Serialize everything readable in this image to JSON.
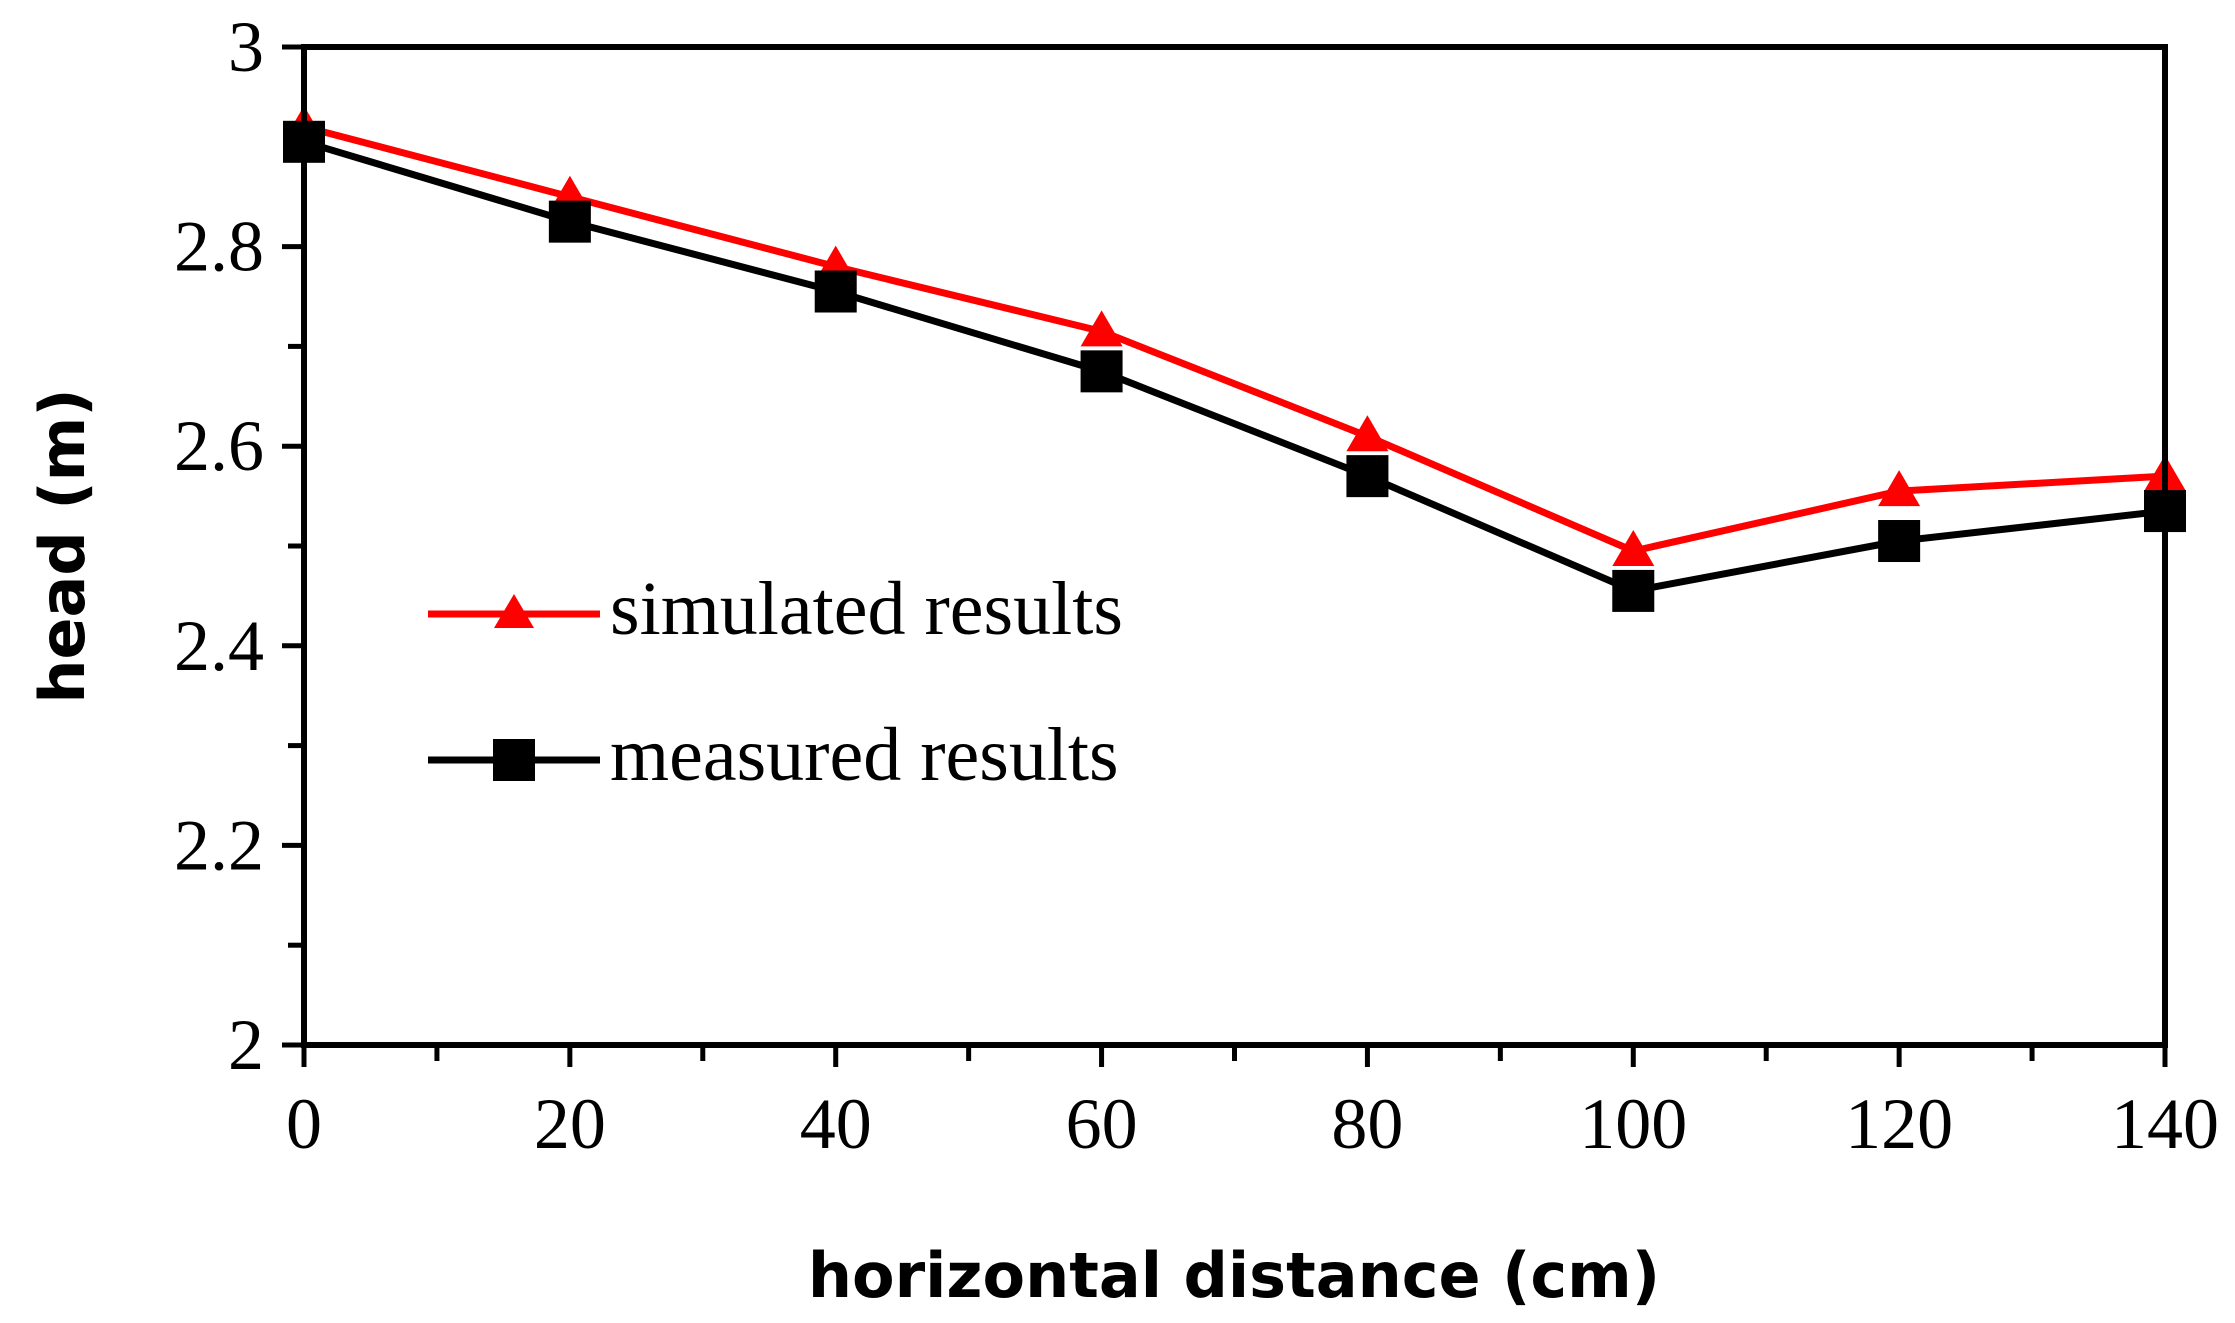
{
  "chart_data": {
    "type": "line",
    "title": "",
    "xlabel": "horizontal distance (cm)",
    "ylabel": "head (m)",
    "xlim": [
      0,
      140
    ],
    "ylim": [
      2,
      3
    ],
    "x_ticks": [
      0,
      20,
      40,
      60,
      80,
      100,
      120,
      140
    ],
    "x_tick_labels": [
      "0",
      "20",
      "40",
      "60",
      "80",
      "100",
      "120",
      "140"
    ],
    "x_minor_step": 10,
    "y_ticks": [
      2,
      2.2,
      2.4,
      2.6,
      2.8,
      3
    ],
    "y_tick_labels": [
      "2",
      "2.2",
      "2.4",
      "2.6",
      "2.8",
      "3"
    ],
    "y_minor_step": 0.1,
    "grid": false,
    "legend_position": "center-left",
    "x": [
      0,
      20,
      40,
      60,
      80,
      100,
      120,
      140
    ],
    "series": [
      {
        "name": "simulated results",
        "marker": "triangle",
        "color": "#ff0000",
        "values": [
          2.92,
          2.85,
          2.78,
          2.715,
          2.61,
          2.495,
          2.555,
          2.57
        ]
      },
      {
        "name": "measured results",
        "marker": "square",
        "color": "#000000",
        "values": [
          2.905,
          2.825,
          2.755,
          2.675,
          2.57,
          2.455,
          2.505,
          2.535
        ]
      }
    ]
  }
}
